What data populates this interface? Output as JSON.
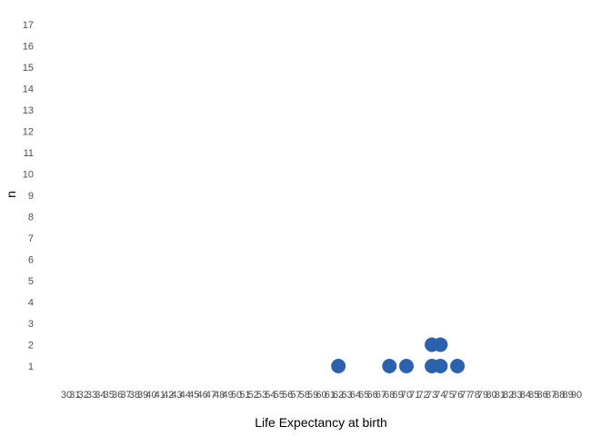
{
  "chart_data": {
    "type": "scatter",
    "subtype": "dot-plot",
    "title": "",
    "xlabel": "Life Expectancy at birth",
    "ylabel": "n",
    "x_ticks": [
      "30",
      "31",
      "32",
      "33",
      "34",
      "35",
      "36",
      "37",
      "38",
      "39",
      "40",
      "41",
      "42",
      "43",
      "44",
      "45",
      "46",
      "47",
      "48",
      "49",
      "50",
      "51",
      "52",
      "53",
      "54",
      "55",
      "56",
      "57",
      "58",
      "59",
      "60",
      "61",
      "62",
      "63",
      "64",
      "65",
      "66",
      "67",
      "68",
      "69",
      "70",
      "71",
      "72",
      "73",
      "74",
      "75",
      "76",
      "77",
      "78",
      "79",
      "80",
      "81",
      "82",
      "83",
      "84",
      "85",
      "86",
      "87",
      "88",
      "89",
      "90"
    ],
    "y_ticks": [
      "1",
      "2",
      "3",
      "4",
      "5",
      "6",
      "7",
      "8",
      "9",
      "10",
      "11",
      "12",
      "13",
      "14",
      "15",
      "16",
      "17"
    ],
    "xlim": [
      30,
      90
    ],
    "ylim": [
      1,
      17
    ],
    "grid": false,
    "dot_color": "#2c62ad",
    "points": [
      {
        "x": 62,
        "y": 1
      },
      {
        "x": 68,
        "y": 1
      },
      {
        "x": 70,
        "y": 1
      },
      {
        "x": 73,
        "y": 1
      },
      {
        "x": 73,
        "y": 2
      },
      {
        "x": 74,
        "y": 1
      },
      {
        "x": 74,
        "y": 2
      },
      {
        "x": 76,
        "y": 1
      }
    ]
  }
}
